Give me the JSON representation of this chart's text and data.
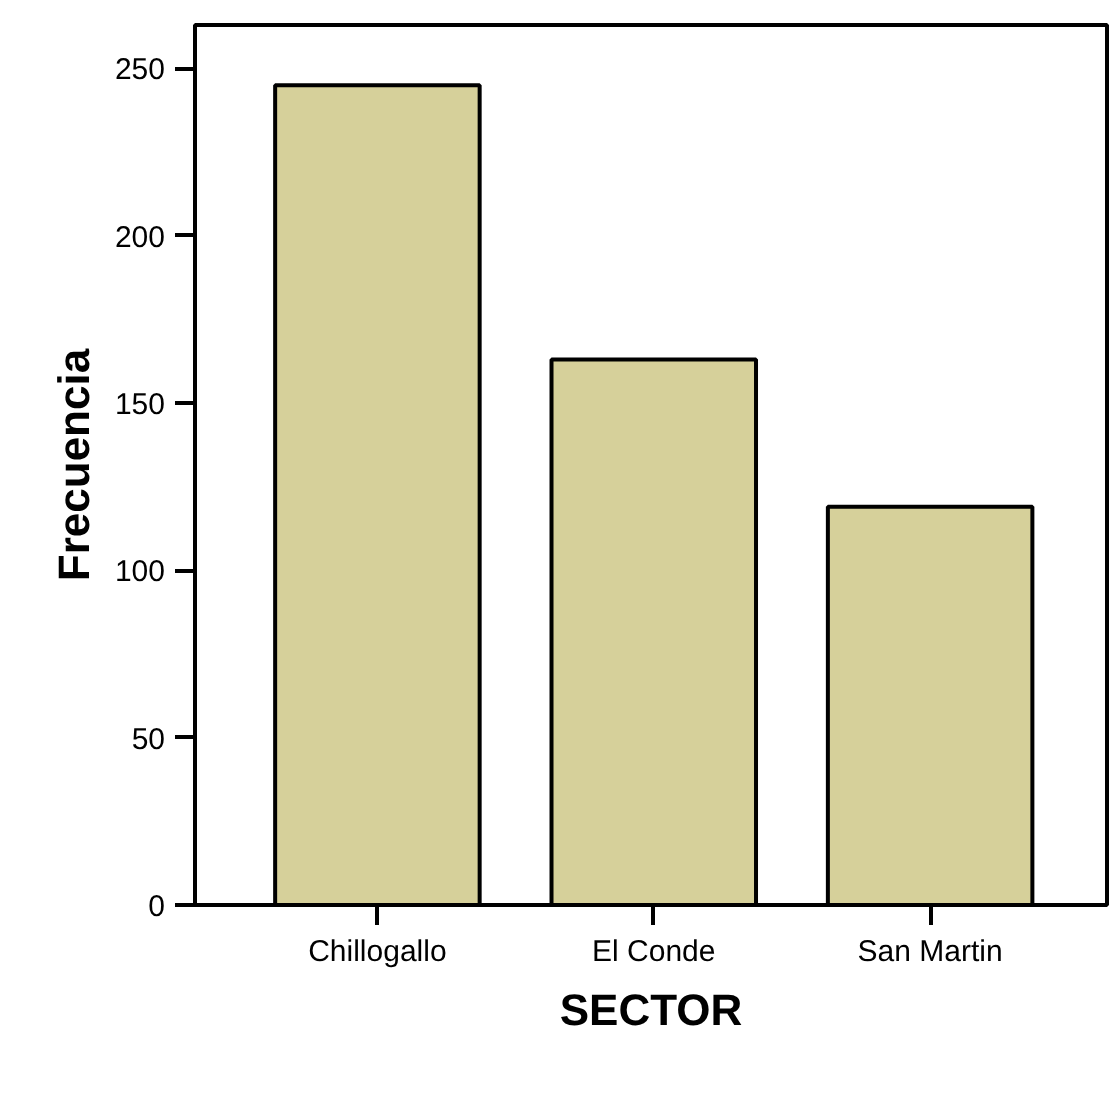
{
  "chart_data": {
    "type": "bar",
    "xlabel": "SECTOR",
    "ylabel": "Frecuencia",
    "categories": [
      "Chillogallo",
      "El Conde",
      "San Martin"
    ],
    "values": [
      245,
      163,
      119
    ],
    "color": "#d6d09a",
    "ylim": [
      0,
      263
    ],
    "yticks": [
      0,
      50,
      100,
      150,
      200,
      250
    ],
    "grid": false
  }
}
